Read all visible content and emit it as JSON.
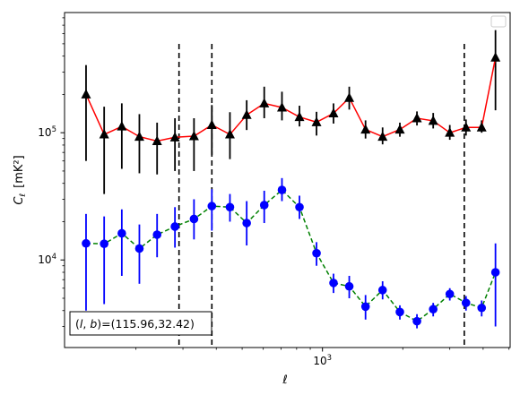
{
  "chart_data": {
    "type": "line",
    "xlabel": "ℓ",
    "ylabel_main": "C",
    "ylabel_sub": "ℓ",
    "ylabel_unit": "[mK²]",
    "xscale": "log",
    "yscale": "log",
    "xlim": [
      108,
      5050
    ],
    "ylim": [
      2050,
      880000
    ],
    "xticks": [
      {
        "value": 1000,
        "base": "10",
        "exp": "3"
      }
    ],
    "yticks": [
      {
        "value": 10000,
        "base": "10",
        "exp": "4"
      },
      {
        "value": 100000,
        "base": "10",
        "exp": "5"
      }
    ],
    "legend": {
      "placement": "top-right",
      "entries": []
    },
    "annotation": "(l, b)=(115.96,32.42)",
    "vlines": [
      {
        "x": 290,
        "style": "dashed",
        "color": "#000000"
      },
      {
        "x": 385,
        "style": "dashed",
        "color": "#000000"
      },
      {
        "x": 3400,
        "style": "dashed",
        "color": "#000000"
      }
    ],
    "series": [
      {
        "marker": "triangle",
        "color": "#000000",
        "line_color": "#ff0000",
        "line_style": "solid",
        "x": [
          130,
          152,
          177,
          206,
          240,
          280,
          330,
          385,
          450,
          520,
          605,
          705,
          820,
          950,
          1100,
          1260,
          1450,
          1680,
          1950,
          2260,
          2600,
          3000,
          3450,
          3950,
          4450
        ],
        "y": [
          200000,
          97000,
          112000,
          93000,
          86000,
          92000,
          94000,
          115000,
          97000,
          138000,
          170000,
          158000,
          133000,
          121000,
          142000,
          188000,
          106000,
          93000,
          106000,
          130000,
          124000,
          100000,
          110000,
          110000,
          390000
        ],
        "yerr_low": [
          60000,
          33000,
          52000,
          48000,
          47000,
          50000,
          50000,
          67000,
          62000,
          105000,
          130000,
          125000,
          112000,
          95000,
          118000,
          152000,
          90000,
          81000,
          93000,
          114000,
          108000,
          88000,
          95000,
          100000,
          150000
        ],
        "yerr_high": [
          340000,
          160000,
          170000,
          140000,
          120000,
          130000,
          130000,
          165000,
          145000,
          180000,
          230000,
          210000,
          163000,
          146000,
          170000,
          230000,
          125000,
          110000,
          120000,
          147000,
          143000,
          115000,
          127000,
          125000,
          640000
        ]
      },
      {
        "marker": "circle",
        "color": "#0000ff",
        "line_color": "#008000",
        "line_style": "dashed",
        "x": [
          130,
          152,
          177,
          206,
          240,
          280,
          330,
          385,
          450,
          520,
          605,
          705,
          820,
          950,
          1100,
          1260,
          1450,
          1680,
          1950,
          2260,
          2600,
          3000,
          3450,
          3950,
          4450
        ],
        "y": [
          13500,
          13400,
          16200,
          12300,
          15800,
          18300,
          21000,
          26500,
          26000,
          19500,
          27000,
          35500,
          26000,
          11300,
          6600,
          6200,
          4300,
          5800,
          3900,
          3300,
          4100,
          5400,
          4600,
          4200,
          8000
        ],
        "yerr_low": [
          4000,
          4500,
          7500,
          6500,
          10500,
          12500,
          14500,
          17000,
          20000,
          13000,
          19500,
          29000,
          21000,
          9000,
          5500,
          5000,
          3400,
          4900,
          3400,
          2900,
          3600,
          4800,
          4000,
          3600,
          3000
        ],
        "yerr_high": [
          23000,
          22000,
          25000,
          19000,
          23000,
          26000,
          30000,
          36000,
          33000,
          29000,
          35000,
          44000,
          32000,
          13800,
          7800,
          7500,
          5300,
          6800,
          4400,
          3750,
          4600,
          6000,
          5200,
          4800,
          13500
        ]
      }
    ]
  }
}
